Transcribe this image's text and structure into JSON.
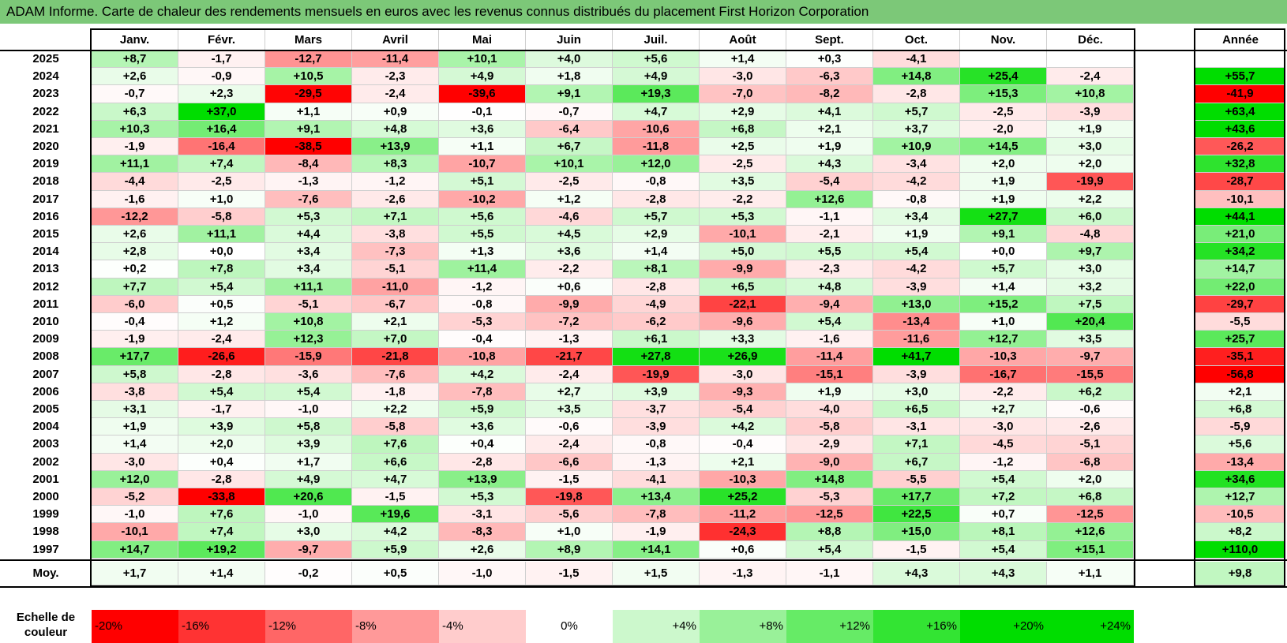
{
  "title": "ADAM Informe. Carte de chaleur des rendements mensuels en euros avec les revenus connus distribués du placement First Horizon Corporation",
  "months": [
    "Janv.",
    "Févr.",
    "Mars",
    "Avril",
    "Mai",
    "Juin",
    "Juil.",
    "Août",
    "Sept.",
    "Oct.",
    "Nov.",
    "Déc."
  ],
  "annual_header": "Année",
  "avg_label": "Moy.",
  "scale_label": "Echelle de couleur",
  "scale_values": [
    "-20%",
    "-16%",
    "-12%",
    "-8%",
    "-4%",
    "0%",
    "+4%",
    "+8%",
    "+12%",
    "+16%",
    "+20%",
    "+24%"
  ],
  "colors": {
    "header_green": "#7cc878",
    "strong_red": "#ff0000",
    "strong_green": "#00dd00",
    "neutral": "#ffffff"
  },
  "chart_data": {
    "type": "heatmap",
    "title": "ADAM Informe. Carte de chaleur des rendements mensuels en euros avec les revenus connus distribués du placement First Horizon Corporation",
    "x_categories": [
      "Janv.",
      "Févr.",
      "Mars",
      "Avril",
      "Mai",
      "Juin",
      "Juil.",
      "Août",
      "Sept.",
      "Oct.",
      "Nov.",
      "Déc."
    ],
    "rows": [
      {
        "year": "2025",
        "values": [
          "+8,7",
          "-1,7",
          "-12,7",
          "-11,4",
          "+10,1",
          "+4,0",
          "+5,6",
          "+1,4",
          "+0,3",
          "-4,1",
          "",
          ""
        ],
        "annual": ""
      },
      {
        "year": "2024",
        "values": [
          "+2,6",
          "-0,9",
          "+10,5",
          "-2,3",
          "+4,9",
          "+1,8",
          "+4,9",
          "-3,0",
          "-6,3",
          "+14,8",
          "+25,4",
          "-2,4"
        ],
        "annual": "+55,7"
      },
      {
        "year": "2023",
        "values": [
          "-0,7",
          "+2,3",
          "-29,5",
          "-2,4",
          "-39,6",
          "+9,1",
          "+19,3",
          "-7,0",
          "-8,2",
          "-2,8",
          "+15,3",
          "+10,8"
        ],
        "annual": "-41,9"
      },
      {
        "year": "2022",
        "values": [
          "+6,3",
          "+37,0",
          "+1,1",
          "+0,9",
          "-0,1",
          "-0,7",
          "+4,7",
          "+2,9",
          "+4,1",
          "+5,7",
          "-2,5",
          "-3,9"
        ],
        "annual": "+63,4"
      },
      {
        "year": "2021",
        "values": [
          "+10,3",
          "+16,4",
          "+9,1",
          "+4,8",
          "+3,6",
          "-6,4",
          "-10,6",
          "+6,8",
          "+2,1",
          "+3,7",
          "-2,0",
          "+1,9"
        ],
        "annual": "+43,6"
      },
      {
        "year": "2020",
        "values": [
          "-1,9",
          "-16,4",
          "-38,5",
          "+13,9",
          "+1,1",
          "+6,7",
          "-11,8",
          "+2,5",
          "+1,9",
          "+10,9",
          "+14,5",
          "+3,0"
        ],
        "annual": "-26,2"
      },
      {
        "year": "2019",
        "values": [
          "+11,1",
          "+7,4",
          "-8,4",
          "+8,3",
          "-10,7",
          "+10,1",
          "+12,0",
          "-2,5",
          "+4,3",
          "-3,4",
          "+2,0",
          "+2,0"
        ],
        "annual": "+32,8"
      },
      {
        "year": "2018",
        "values": [
          "-4,4",
          "-2,5",
          "-1,3",
          "-1,2",
          "+5,1",
          "-2,5",
          "-0,8",
          "+3,5",
          "-5,4",
          "-4,2",
          "+1,9",
          "-19,9"
        ],
        "annual": "-28,7"
      },
      {
        "year": "2017",
        "values": [
          "-1,6",
          "+1,0",
          "-7,6",
          "-2,6",
          "-10,2",
          "+1,2",
          "-2,8",
          "-2,2",
          "+12,6",
          "-0,8",
          "+1,9",
          "+2,2"
        ],
        "annual": "-10,1"
      },
      {
        "year": "2016",
        "values": [
          "-12,2",
          "-5,8",
          "+5,3",
          "+7,1",
          "+5,6",
          "-4,6",
          "+5,7",
          "+5,3",
          "-1,1",
          "+3,4",
          "+27,7",
          "+6,0"
        ],
        "annual": "+44,1"
      },
      {
        "year": "2015",
        "values": [
          "+2,6",
          "+11,1",
          "+4,4",
          "-3,8",
          "+5,5",
          "+4,5",
          "+2,9",
          "-10,1",
          "-2,1",
          "+1,9",
          "+9,1",
          "-4,8"
        ],
        "annual": "+21,0"
      },
      {
        "year": "2014",
        "values": [
          "+2,8",
          "+0,0",
          "+3,4",
          "-7,3",
          "+1,3",
          "+3,6",
          "+1,4",
          "+5,0",
          "+5,5",
          "+5,4",
          "+0,0",
          "+9,7"
        ],
        "annual": "+34,2"
      },
      {
        "year": "2013",
        "values": [
          "+0,2",
          "+7,8",
          "+3,4",
          "-5,1",
          "+11,4",
          "-2,2",
          "+8,1",
          "-9,9",
          "-2,3",
          "-4,2",
          "+5,7",
          "+3,0"
        ],
        "annual": "+14,7"
      },
      {
        "year": "2012",
        "values": [
          "+7,7",
          "+5,4",
          "+11,1",
          "-11,0",
          "-1,2",
          "+0,6",
          "-2,8",
          "+6,5",
          "+4,8",
          "-3,9",
          "+1,4",
          "+3,2"
        ],
        "annual": "+22,0"
      },
      {
        "year": "2011",
        "values": [
          "-6,0",
          "+0,5",
          "-5,1",
          "-6,7",
          "-0,8",
          "-9,9",
          "-4,9",
          "-22,1",
          "-9,4",
          "+13,0",
          "+15,2",
          "+7,5"
        ],
        "annual": "-29,7"
      },
      {
        "year": "2010",
        "values": [
          "-0,4",
          "+1,2",
          "+10,8",
          "+2,1",
          "-5,3",
          "-7,2",
          "-6,2",
          "-9,6",
          "+5,4",
          "-13,4",
          "+1,0",
          "+20,4"
        ],
        "annual": "-5,5"
      },
      {
        "year": "2009",
        "values": [
          "-1,9",
          "-2,4",
          "+12,3",
          "+7,0",
          "-0,4",
          "-1,3",
          "+6,1",
          "+3,3",
          "-1,6",
          "-11,6",
          "+12,7",
          "+3,5"
        ],
        "annual": "+25,7"
      },
      {
        "year": "2008",
        "values": [
          "+17,7",
          "-26,6",
          "-15,9",
          "-21,8",
          "-10,8",
          "-21,7",
          "+27,8",
          "+26,9",
          "-11,4",
          "+41,7",
          "-10,3",
          "-9,7"
        ],
        "annual": "-35,1"
      },
      {
        "year": "2007",
        "values": [
          "+5,8",
          "-2,8",
          "-3,6",
          "-7,6",
          "+4,2",
          "-2,4",
          "-19,9",
          "-3,0",
          "-15,1",
          "-3,9",
          "-16,7",
          "-15,5"
        ],
        "annual": "-56,8"
      },
      {
        "year": "2006",
        "values": [
          "-3,8",
          "+5,4",
          "+5,4",
          "-1,8",
          "-7,8",
          "+2,7",
          "+3,9",
          "-9,3",
          "+1,9",
          "+3,0",
          "-2,2",
          "+6,2"
        ],
        "annual": "+2,1"
      },
      {
        "year": "2005",
        "values": [
          "+3,1",
          "-1,7",
          "-1,0",
          "+2,2",
          "+5,9",
          "+3,5",
          "-3,7",
          "-5,4",
          "-4,0",
          "+6,5",
          "+2,7",
          "-0,6"
        ],
        "annual": "+6,8"
      },
      {
        "year": "2004",
        "values": [
          "+1,9",
          "+3,9",
          "+5,8",
          "-5,8",
          "+3,6",
          "-0,6",
          "-3,9",
          "+4,2",
          "-5,8",
          "-3,1",
          "-3,0",
          "-2,6"
        ],
        "annual": "-5,9"
      },
      {
        "year": "2003",
        "values": [
          "+1,4",
          "+2,0",
          "+3,9",
          "+7,6",
          "+0,4",
          "-2,4",
          "-0,8",
          "-0,4",
          "-2,9",
          "+7,1",
          "-4,5",
          "-5,1"
        ],
        "annual": "+5,6"
      },
      {
        "year": "2002",
        "values": [
          "-3,0",
          "+0,4",
          "+1,7",
          "+6,6",
          "-2,8",
          "-6,6",
          "-1,3",
          "+2,1",
          "-9,0",
          "+6,7",
          "-1,2",
          "-6,8"
        ],
        "annual": "-13,4"
      },
      {
        "year": "2001",
        "values": [
          "+12,0",
          "-2,8",
          "+4,9",
          "+4,7",
          "+13,9",
          "-1,5",
          "-4,1",
          "-10,3",
          "+14,8",
          "-5,5",
          "+5,4",
          "+2,0"
        ],
        "annual": "+34,6"
      },
      {
        "year": "2000",
        "values": [
          "-5,2",
          "-33,8",
          "+20,6",
          "-1,5",
          "+5,3",
          "-19,8",
          "+13,4",
          "+25,2",
          "-5,3",
          "+17,7",
          "+7,2",
          "+6,8"
        ],
        "annual": "+12,7"
      },
      {
        "year": "1999",
        "values": [
          "-1,0",
          "+7,6",
          "-1,0",
          "+19,6",
          "-3,1",
          "-5,6",
          "-7,8",
          "-11,2",
          "-12,5",
          "+22,5",
          "+0,7",
          "-12,5"
        ],
        "annual": "-10,5"
      },
      {
        "year": "1998",
        "values": [
          "-10,1",
          "+7,4",
          "+3,0",
          "+4,2",
          "-8,3",
          "+1,0",
          "-1,9",
          "-24,3",
          "+8,8",
          "+15,0",
          "+8,1",
          "+12,6"
        ],
        "annual": "+8,2"
      },
      {
        "year": "1997",
        "values": [
          "+14,7",
          "+19,2",
          "-9,7",
          "+5,9",
          "+2,6",
          "+8,9",
          "+14,1",
          "+0,6",
          "+5,4",
          "-1,5",
          "+5,4",
          "+15,1"
        ],
        "annual": "+110,0"
      }
    ],
    "average": {
      "values": [
        "+1,7",
        "+1,4",
        "-0,2",
        "+0,5",
        "-1,0",
        "-1,5",
        "+1,5",
        "-1,3",
        "-1,1",
        "+4,3",
        "+4,3",
        "+1,1"
      ],
      "annual": "+9,8"
    }
  }
}
